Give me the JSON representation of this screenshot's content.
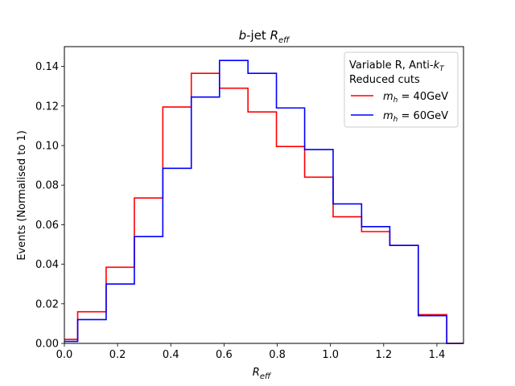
{
  "chart_data": {
    "type": "line",
    "style": "step-histogram",
    "title": "b-jet R_eff",
    "xlabel": "R_eff",
    "ylabel": "Events (Normalised to 1)",
    "xlim": [
      0.0,
      1.5
    ],
    "ylim": [
      0.0,
      0.15
    ],
    "xticks": [
      "0.0",
      "0.2",
      "0.4",
      "0.6",
      "0.8",
      "1.0",
      "1.2",
      "1.4"
    ],
    "yticks": [
      "0.00",
      "0.02",
      "0.04",
      "0.06",
      "0.08",
      "0.10",
      "0.12",
      "0.14"
    ],
    "grid": false,
    "legend_position": "top-right",
    "legend_title_lines": [
      "Variable R, Anti-k_T",
      "Reduced cuts"
    ],
    "bin_edges": [
      0.0,
      0.05,
      0.157,
      0.263,
      0.37,
      0.477,
      0.583,
      0.69,
      0.797,
      0.903,
      1.01,
      1.117,
      1.223,
      1.33,
      1.437,
      1.5
    ],
    "series": [
      {
        "name": "m_h = 40GeV",
        "color": "#ff0000",
        "values": [
          0.002,
          0.016,
          0.0385,
          0.0735,
          0.1195,
          0.1365,
          0.129,
          0.117,
          0.0995,
          0.084,
          0.064,
          0.0565,
          0.0495,
          0.0145,
          0.0
        ]
      },
      {
        "name": "m_h = 60GeV",
        "color": "#0000ff",
        "values": [
          0.001,
          0.012,
          0.03,
          0.054,
          0.0885,
          0.1245,
          0.143,
          0.1365,
          0.119,
          0.098,
          0.0705,
          0.059,
          0.0495,
          0.014,
          0.0
        ]
      }
    ]
  }
}
